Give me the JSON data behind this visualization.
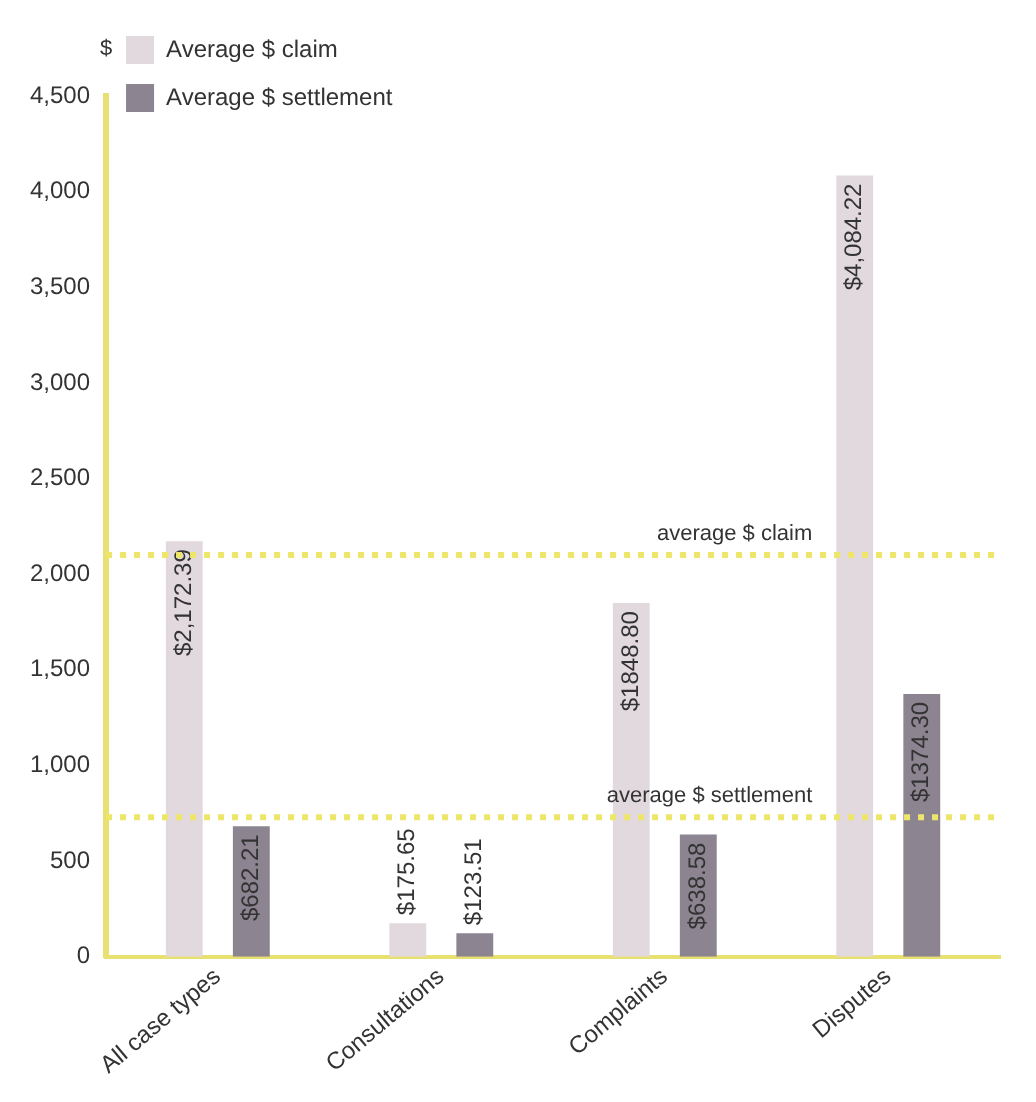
{
  "chart_data": {
    "type": "bar",
    "ylabel": "$",
    "categories": [
      "All case types",
      "Consultations",
      "Complaints",
      "Disputes"
    ],
    "series": [
      {
        "name": "Average $ claim",
        "color": "#e2d9de",
        "values": [
          2172.39,
          175.65,
          1848.8,
          4084.22
        ],
        "value_labels": [
          "$2,172.39",
          "$175.65",
          "$1848.80",
          "$4,084.22"
        ]
      },
      {
        "name": "Average $ settlement",
        "color": "#8c8490",
        "values": [
          682.21,
          123.51,
          638.58,
          1374.3
        ],
        "value_labels": [
          "$682.21",
          "$123.51",
          "$638.58",
          "$1374.30"
        ]
      }
    ],
    "ylim": [
      0,
      4500
    ],
    "yticks": [
      0,
      500,
      {
        "value": 1000,
        "label": "1,000"
      },
      {
        "value": 1500,
        "label": "1,500"
      },
      {
        "value": 2000,
        "label": "2,000"
      },
      {
        "value": 2500,
        "label": "2,500"
      },
      {
        "value": 3000,
        "label": "3,000"
      },
      {
        "value": 3500,
        "label": "3,500"
      },
      {
        "value": 4000,
        "label": "4,000"
      },
      {
        "value": 4500,
        "label": "4,500"
      }
    ],
    "ref_lines": [
      {
        "axis": "y",
        "value": 2100,
        "label": "average $ claim",
        "color": "#ede66a",
        "line_style": "dotted"
      },
      {
        "axis": "y",
        "value": 730,
        "label": "average $ settlement",
        "color": "#ede66a",
        "line_style": "dotted"
      }
    ],
    "grid": false,
    "legend": "top left"
  }
}
